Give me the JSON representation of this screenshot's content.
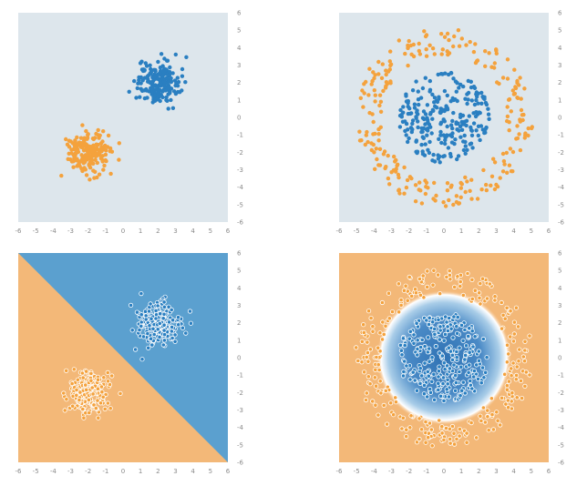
{
  "colors": {
    "blue": "#2a7fc1",
    "orange": "#f4a23d",
    "bg_neutral": "#dde6ec",
    "region_blue": "#5ba0cf",
    "region_orange": "#f3b878",
    "ring_center": "#2f72b4",
    "ring_edge": "#ffffff"
  },
  "chart_data": [
    {
      "type": "scatter",
      "panel": "top-left",
      "xlim": [
        -6,
        6
      ],
      "ylim": [
        -6,
        6
      ],
      "x_ticks": [
        "-6",
        "-5",
        "-4",
        "-3",
        "-2",
        "-1",
        "0",
        "1",
        "2",
        "3",
        "4",
        "5",
        "6"
      ],
      "y_ticks": [
        "6",
        "5",
        "4",
        "3",
        "2",
        "1",
        "0",
        "-1",
        "-2",
        "-3",
        "-4",
        "-5",
        "-6"
      ],
      "background": "neutral",
      "series": [
        {
          "color": "blue",
          "shape": "gaussian",
          "center": [
            2,
            2
          ],
          "spread": 0.6,
          "count": 200
        },
        {
          "color": "orange",
          "shape": "gaussian",
          "center": [
            -2,
            -2
          ],
          "spread": 0.6,
          "count": 200
        }
      ]
    },
    {
      "type": "scatter",
      "panel": "top-right",
      "xlim": [
        -6,
        6
      ],
      "ylim": [
        -6,
        6
      ],
      "x_ticks": [
        "-6",
        "-5",
        "-4",
        "-3",
        "-2",
        "-1",
        "0",
        "1",
        "2",
        "3",
        "4",
        "5",
        "6"
      ],
      "y_ticks": [
        "6",
        "5",
        "4",
        "3",
        "2",
        "1",
        "0",
        "-1",
        "-2",
        "-3",
        "-4",
        "-5",
        "-6"
      ],
      "background": "neutral",
      "series": [
        {
          "color": "blue",
          "shape": "disk",
          "center": [
            0,
            0
          ],
          "radius": 2.6,
          "count": 250
        },
        {
          "color": "orange",
          "shape": "ring",
          "center": [
            0,
            0
          ],
          "r_min": 3.6,
          "r_max": 5.1,
          "count": 250
        }
      ]
    },
    {
      "type": "scatter",
      "panel": "bottom-left",
      "xlim": [
        -6,
        6
      ],
      "ylim": [
        -6,
        6
      ],
      "x_ticks": [
        "-6",
        "-5",
        "-4",
        "-3",
        "-2",
        "-1",
        "0",
        "1",
        "2",
        "3",
        "4",
        "5",
        "6"
      ],
      "y_ticks": [
        "6",
        "5",
        "4",
        "3",
        "2",
        "1",
        "0",
        "-1",
        "-2",
        "-3",
        "-4",
        "-5",
        "-6"
      ],
      "background": "linear-boundary",
      "boundary": "y = -x",
      "series": [
        {
          "color": "blue",
          "shape": "gaussian",
          "center": [
            2,
            2
          ],
          "spread": 0.6,
          "count": 200
        },
        {
          "color": "orange",
          "shape": "gaussian",
          "center": [
            -2,
            -2
          ],
          "spread": 0.6,
          "count": 200
        }
      ]
    },
    {
      "type": "scatter",
      "panel": "bottom-right",
      "xlim": [
        -6,
        6
      ],
      "ylim": [
        -6,
        6
      ],
      "x_ticks": [
        "-6",
        "-5",
        "-4",
        "-3",
        "-2",
        "-1",
        "0",
        "1",
        "2",
        "3",
        "4",
        "5",
        "6"
      ],
      "y_ticks": [
        "6",
        "5",
        "4",
        "3",
        "2",
        "1",
        "0",
        "-1",
        "-2",
        "-3",
        "-4",
        "-5",
        "-6"
      ],
      "background": "circular-boundary",
      "boundary_radius": 3.1,
      "series": [
        {
          "color": "blue",
          "shape": "disk",
          "center": [
            0,
            0
          ],
          "radius": 2.6,
          "count": 250
        },
        {
          "color": "orange",
          "shape": "ring",
          "center": [
            0,
            0
          ],
          "r_min": 3.6,
          "r_max": 5.1,
          "count": 250
        }
      ]
    }
  ]
}
